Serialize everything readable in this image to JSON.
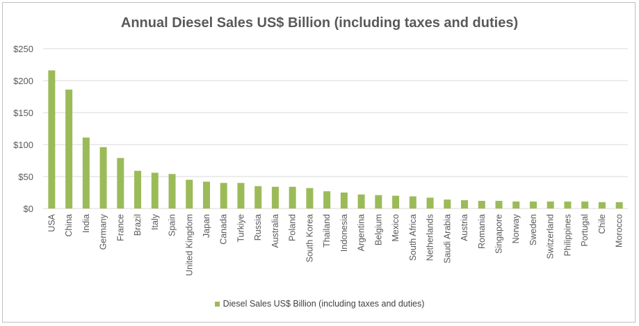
{
  "chart_data": {
    "type": "bar",
    "title": "Annual Diesel Sales US$ Billion (including taxes and duties)",
    "xlabel": "",
    "ylabel": "",
    "ylim": [
      0,
      250
    ],
    "yticks": [
      "$0",
      "$50",
      "$100",
      "$150",
      "$200",
      "$250"
    ],
    "ytick_values": [
      0,
      50,
      100,
      150,
      200,
      250
    ],
    "grid": true,
    "legend_position": "bottom",
    "color": "#9bbb59",
    "categories": [
      "USA",
      "China",
      "India",
      "Germany",
      "France",
      "Brazil",
      "Italy",
      "Spain",
      "United Kingdom",
      "Japan",
      "Canada",
      "Turkiye",
      "Russia",
      "Australia",
      "Poland",
      "South Korea",
      "Thailand",
      "Indonesia",
      "Argentina",
      "Belgium",
      "Mexico",
      "South Africa",
      "Netherlands",
      "Saudi Arabia",
      "Austria",
      "Romania",
      "Singapore",
      "Norway",
      "Sweden",
      "Switzerland",
      "Philippines",
      "Portugal",
      "Chile",
      "Morocco"
    ],
    "series": [
      {
        "name": "Diesel Sales US$ Billion (including taxes and duties)",
        "values": [
          216,
          186,
          111,
          96,
          79,
          59,
          56,
          54,
          45,
          42,
          40,
          40,
          35,
          34,
          34,
          32,
          27,
          25,
          22,
          21,
          20,
          19,
          17,
          14,
          13,
          12,
          12,
          11,
          11,
          11,
          11,
          11,
          10,
          10
        ]
      }
    ]
  }
}
